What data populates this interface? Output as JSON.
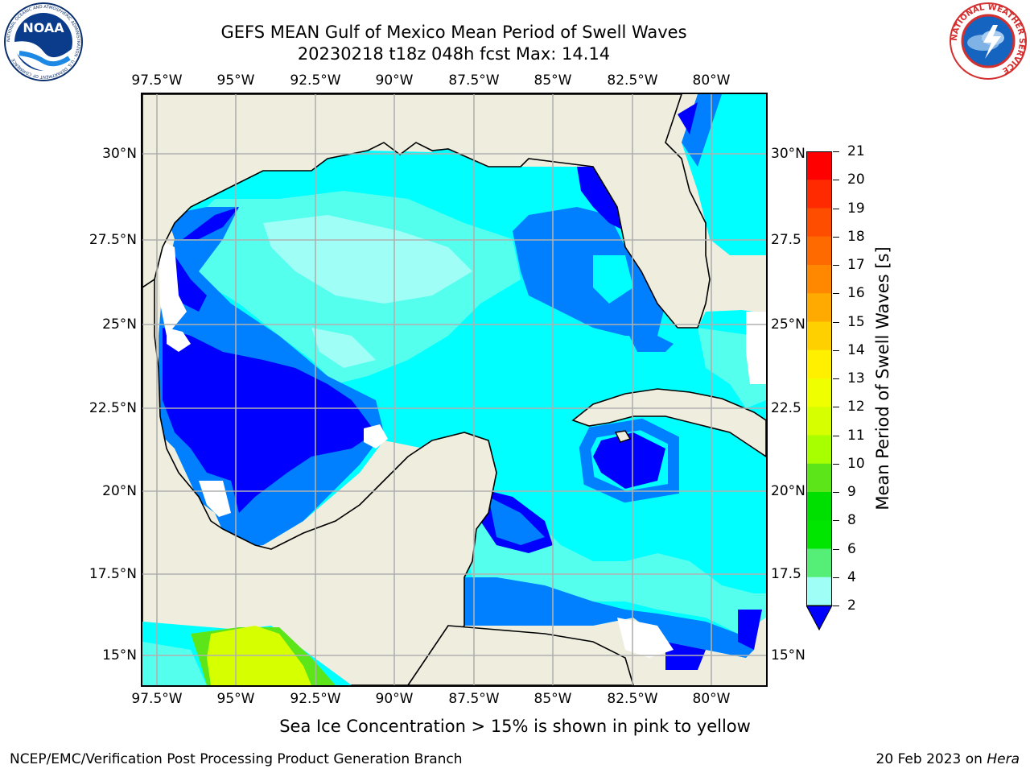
{
  "title": {
    "line1": "GEFS MEAN Gulf of Mexico Mean Period of Swell Waves",
    "line2": "20230218 t18z 048h fcst   Max: 14.14"
  },
  "axes": {
    "lon_labels": [
      "97.5°W",
      "95°W",
      "92.5°W",
      "90°W",
      "87.5°W",
      "85°W",
      "82.5°W",
      "80°W"
    ],
    "lat_labels_left": [
      "30°N",
      "27.5°N",
      "25°N",
      "22.5°N",
      "20°N",
      "17.5°N",
      "15°N"
    ],
    "lat_labels_right": [
      "30°N",
      "27.5",
      "25°N",
      "22.5",
      "20°N",
      "17.5",
      "15°N"
    ],
    "lon_range": [
      -98,
      -78.2
    ],
    "lat_range": [
      14.1,
      31.8
    ]
  },
  "colorbar": {
    "label": "Mean Period of Swell Waves [s]",
    "ticks": [
      "21",
      "20",
      "19",
      "18",
      "17",
      "16",
      "15",
      "14",
      "13",
      "12",
      "11",
      "10",
      "9",
      "8",
      "6",
      "4",
      "2"
    ],
    "colors": [
      "#ff0000",
      "#ff2a00",
      "#ff4d00",
      "#ff6a00",
      "#ff8800",
      "#ffaa00",
      "#ffd000",
      "#fff000",
      "#f0ff00",
      "#d6ff00",
      "#a8ff00",
      "#5ce619",
      "#00e000",
      "#00e600",
      "#55ee77",
      "#9ffff6",
      "#55ffee",
      "#00ffff",
      "#007fff",
      "#0000ff"
    ]
  },
  "subtitle": "Sea Ice Concentration > 15% is shown in pink to yellow",
  "footer": {
    "left": "NCEP/EMC/Verification Post Processing Product Generation Branch",
    "right_date": "20 Feb 2023 on ",
    "right_host": "Hera"
  },
  "logos": {
    "noaa_text": "NOAA",
    "noaa_ring": "NATIONAL OCEANIC AND ATMOSPHERIC ADMINISTRATION · U.S. DEPARTMENT OF COMMERCE",
    "nws_ring": "NATIONAL WEATHER SERVICE"
  },
  "colors": {
    "land": "#eeedde",
    "period_2_4": "#007fff",
    "period_lt2": "#0000ff",
    "period_4_6": "#00ffff",
    "period_6_8": "#55ffee",
    "period_8_9": "#9ffff6",
    "grid": "#b0b0b0"
  }
}
